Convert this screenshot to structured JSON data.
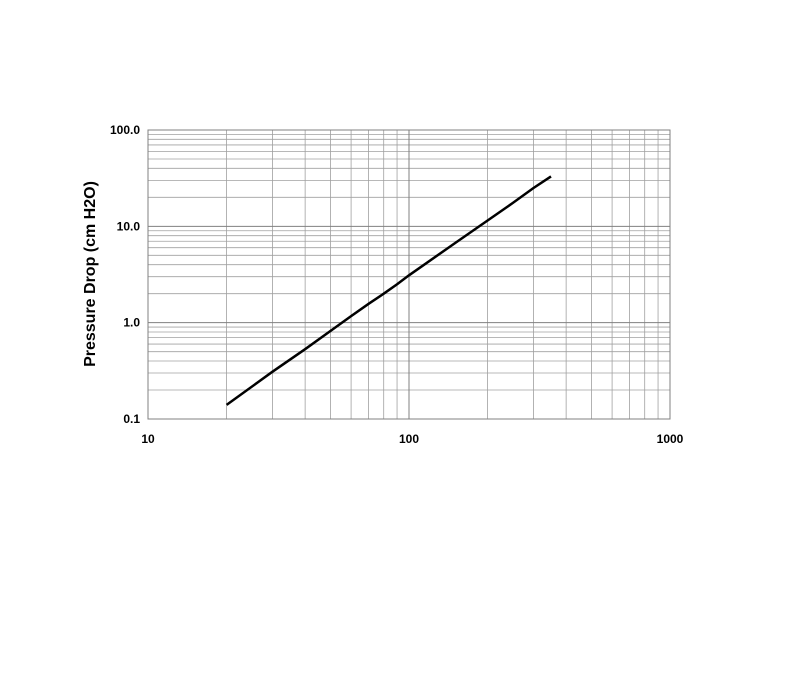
{
  "chart_data": {
    "type": "line",
    "y_label": "Pressure Drop (cm H2O)",
    "x": [
      20,
      30,
      40,
      50,
      60,
      70,
      80,
      90,
      100,
      150,
      200,
      250,
      300,
      350
    ],
    "series": [
      {
        "color": "#000000",
        "values": [
          0.14,
          0.31,
          0.53,
          0.82,
          1.17,
          1.57,
          2.0,
          2.5,
          3.1,
          6.7,
          11.5,
          17.5,
          25,
          33
        ]
      }
    ],
    "xlim": [
      10,
      1000
    ],
    "xticks": [
      10,
      100,
      1000
    ],
    "ylim": [
      0.1,
      100
    ],
    "yticks": [
      0.1,
      {
        "value": 1,
        "label": "1.0"
      },
      {
        "value": 10,
        "label": "10.0"
      },
      {
        "value": 100,
        "label": "100.0"
      }
    ],
    "x_log": true,
    "y_log": true,
    "grid": true,
    "minor_grid": true
  }
}
